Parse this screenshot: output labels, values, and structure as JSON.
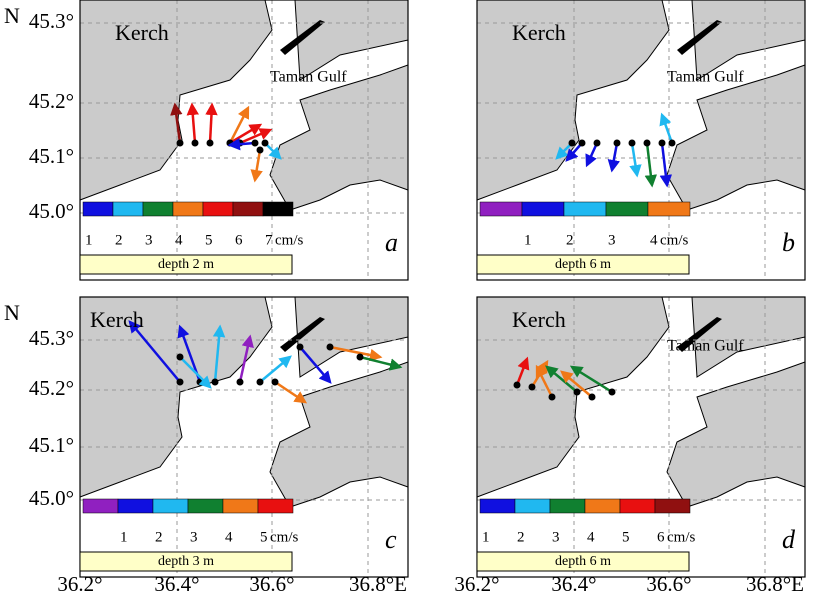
{
  "axes": {
    "north": "N",
    "lat_labels": [
      "45.3°",
      "45.2°",
      "45.1°",
      "45.0°"
    ],
    "lon_labels": [
      "36.2°",
      "36.4°",
      "36.6°",
      "36.8°E"
    ]
  },
  "panels": [
    {
      "letter": "a",
      "place_labels": [
        "Kerch",
        "Taman Gulf"
      ],
      "depth": "depth 2 m",
      "colorbar": {
        "colors": [
          "#1010e0",
          "#20b8f0",
          "#108030",
          "#f07818",
          "#e81010",
          "#901010",
          "#000000"
        ],
        "ticks": [
          "1",
          "2",
          "3",
          "4",
          "5",
          "6",
          "7"
        ],
        "unit": "cm/s"
      }
    },
    {
      "letter": "b",
      "place_labels": [
        "Kerch",
        "Taman Gulf"
      ],
      "depth": "depth 6 m",
      "colorbar": {
        "colors": [
          "#9020c0",
          "#1010e0",
          "#20b8f0",
          "#108030",
          "#f07818"
        ],
        "ticks": [
          "1",
          "2",
          "3",
          "4"
        ],
        "unit": "cm/s"
      }
    },
    {
      "letter": "c",
      "place_labels": [
        "Kerch"
      ],
      "depth": "depth 3 m",
      "colorbar": {
        "colors": [
          "#9020c0",
          "#1010e0",
          "#20b8f0",
          "#108030",
          "#f07818",
          "#e81010"
        ],
        "ticks": [
          "1",
          "2",
          "3",
          "4",
          "5"
        ],
        "unit": "cm/s"
      }
    },
    {
      "letter": "d",
      "place_labels": [
        "Kerch",
        "Taman Gulf"
      ],
      "depth": "depth 6 m",
      "colorbar": {
        "colors": [
          "#1010e0",
          "#20b8f0",
          "#108030",
          "#f07818",
          "#e81010",
          "#901010"
        ],
        "ticks": [
          "1",
          "2",
          "3",
          "4",
          "5",
          "6"
        ],
        "unit": "cm/s"
      }
    }
  ]
}
